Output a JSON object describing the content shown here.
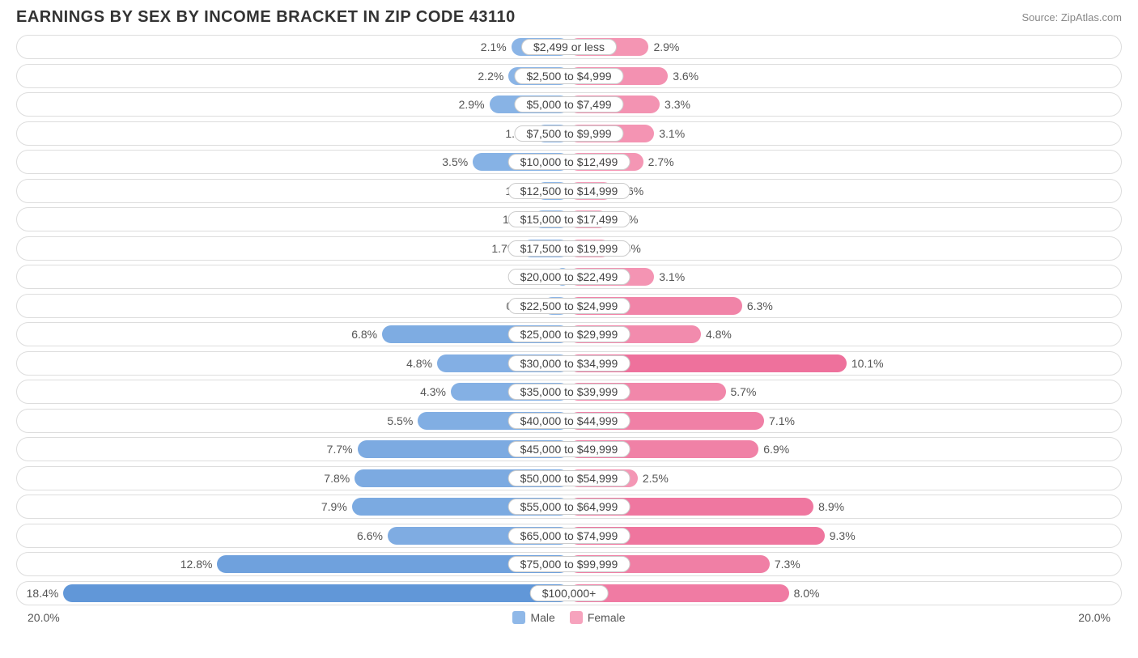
{
  "title": "EARNINGS BY SEX BY INCOME BRACKET IN ZIP CODE 43110",
  "source": "Source: ZipAtlas.com",
  "axis_max_label": "20.0%",
  "axis_max_value": 20.0,
  "colors": {
    "male_base": "#8fb8e8",
    "male_dark": "#5c93d6",
    "female_base": "#f6a3bd",
    "female_dark": "#ed6b98",
    "track_border": "#dddddd",
    "cat_border": "#cccccc",
    "text": "#555555",
    "title": "#333333",
    "source": "#888888",
    "background": "#ffffff"
  },
  "legend": {
    "male": "Male",
    "female": "Female"
  },
  "rows": [
    {
      "category": "$2,499 or less",
      "male": 2.1,
      "female": 2.9,
      "male_label": "2.1%",
      "female_label": "2.9%"
    },
    {
      "category": "$2,500 to $4,999",
      "male": 2.2,
      "female": 3.6,
      "male_label": "2.2%",
      "female_label": "3.6%"
    },
    {
      "category": "$5,000 to $7,499",
      "male": 2.9,
      "female": 3.3,
      "male_label": "2.9%",
      "female_label": "3.3%"
    },
    {
      "category": "$7,500 to $9,999",
      "male": 1.2,
      "female": 3.1,
      "male_label": "1.2%",
      "female_label": "3.1%"
    },
    {
      "category": "$10,000 to $12,499",
      "male": 3.5,
      "female": 2.7,
      "male_label": "3.5%",
      "female_label": "2.7%"
    },
    {
      "category": "$12,500 to $14,999",
      "male": 1.2,
      "female": 1.6,
      "male_label": "1.2%",
      "female_label": "1.6%"
    },
    {
      "category": "$15,000 to $17,499",
      "male": 1.3,
      "female": 1.4,
      "male_label": "1.3%",
      "female_label": "1.4%"
    },
    {
      "category": "$17,500 to $19,999",
      "male": 1.7,
      "female": 1.5,
      "male_label": "1.7%",
      "female_label": "1.5%"
    },
    {
      "category": "$20,000 to $22,499",
      "male": 0.47,
      "female": 3.1,
      "male_label": "0.47%",
      "female_label": "3.1%"
    },
    {
      "category": "$22,500 to $24,999",
      "male": 0.94,
      "female": 6.3,
      "male_label": "0.94%",
      "female_label": "6.3%"
    },
    {
      "category": "$25,000 to $29,999",
      "male": 6.8,
      "female": 4.8,
      "male_label": "6.8%",
      "female_label": "4.8%"
    },
    {
      "category": "$30,000 to $34,999",
      "male": 4.8,
      "female": 10.1,
      "male_label": "4.8%",
      "female_label": "10.1%"
    },
    {
      "category": "$35,000 to $39,999",
      "male": 4.3,
      "female": 5.7,
      "male_label": "4.3%",
      "female_label": "5.7%"
    },
    {
      "category": "$40,000 to $44,999",
      "male": 5.5,
      "female": 7.1,
      "male_label": "5.5%",
      "female_label": "7.1%"
    },
    {
      "category": "$45,000 to $49,999",
      "male": 7.7,
      "female": 6.9,
      "male_label": "7.7%",
      "female_label": "6.9%"
    },
    {
      "category": "$50,000 to $54,999",
      "male": 7.8,
      "female": 2.5,
      "male_label": "7.8%",
      "female_label": "2.5%"
    },
    {
      "category": "$55,000 to $64,999",
      "male": 7.9,
      "female": 8.9,
      "male_label": "7.9%",
      "female_label": "8.9%"
    },
    {
      "category": "$65,000 to $74,999",
      "male": 6.6,
      "female": 9.3,
      "male_label": "6.6%",
      "female_label": "9.3%"
    },
    {
      "category": "$75,000 to $99,999",
      "male": 12.8,
      "female": 7.3,
      "male_label": "12.8%",
      "female_label": "7.3%"
    },
    {
      "category": "$100,000+",
      "male": 18.4,
      "female": 8.0,
      "male_label": "18.4%",
      "female_label": "8.0%"
    }
  ]
}
